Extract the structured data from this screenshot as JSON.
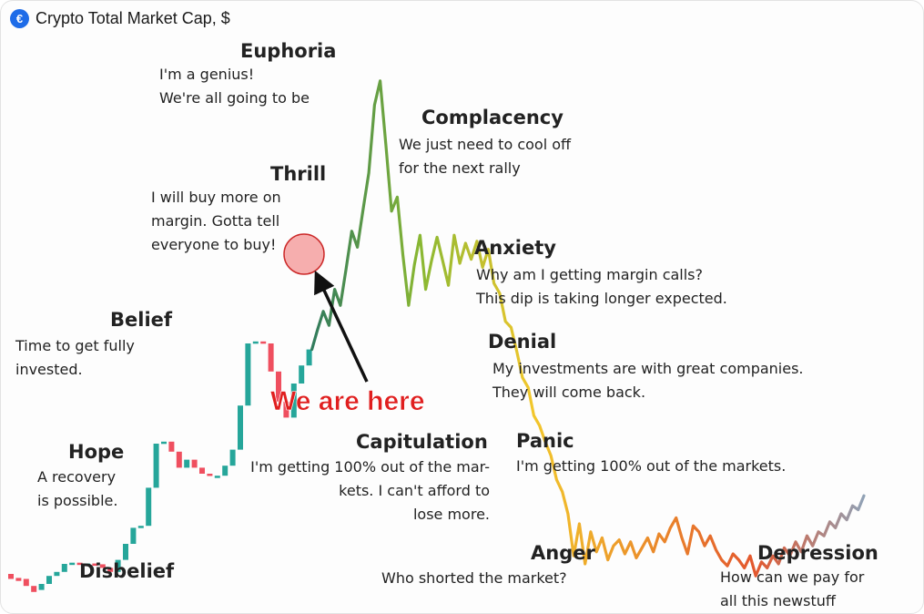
{
  "title": {
    "text": "Crypto Total Market Cap, $",
    "logo_icon": "coin-logo-icon"
  },
  "chart_data": {
    "type": "line",
    "title": "Crypto Total Market Cap, $",
    "xlabel": "",
    "ylabel": "",
    "grid": false,
    "candle_colors": {
      "up": "#26a69a",
      "down": "#ef4f5f"
    },
    "line_gradient": [
      "#2f7a5d",
      "#8ab832",
      "#f2c72c",
      "#eb8f2a",
      "#e3572e",
      "#8fa3b8"
    ],
    "candles": [
      {
        "o": 5,
        "c": 2.5
      },
      {
        "o": 3,
        "c": 1.5
      },
      {
        "o": 2.5,
        "c": -1
      },
      {
        "o": -1,
        "c": -4
      },
      {
        "o": -3,
        "c": 0
      },
      {
        "o": 0,
        "c": 4
      },
      {
        "o": 4,
        "c": 6
      },
      {
        "o": 6,
        "c": 10
      },
      {
        "o": 10,
        "c": 10.6
      },
      {
        "o": 10.6,
        "c": 9.8
      },
      {
        "o": 9.8,
        "c": 10.2
      },
      {
        "o": 10.2,
        "c": 9.8
      },
      {
        "o": 9.8,
        "c": 8
      },
      {
        "o": 8,
        "c": 6
      },
      {
        "o": 6,
        "c": 12
      },
      {
        "o": 12,
        "c": 20
      },
      {
        "o": 20,
        "c": 28
      },
      {
        "o": 28,
        "c": 29
      },
      {
        "o": 29,
        "c": 48
      },
      {
        "o": 48,
        "c": 70
      },
      {
        "o": 70,
        "c": 71
      },
      {
        "o": 71,
        "c": 66
      },
      {
        "o": 66,
        "c": 58
      },
      {
        "o": 58,
        "c": 62
      },
      {
        "o": 62,
        "c": 58
      },
      {
        "o": 58,
        "c": 55
      },
      {
        "o": 55,
        "c": 54
      },
      {
        "o": 54,
        "c": 54
      },
      {
        "o": 54,
        "c": 59
      },
      {
        "o": 59,
        "c": 67
      },
      {
        "o": 67,
        "c": 89
      },
      {
        "o": 89,
        "c": 120
      },
      {
        "o": 120,
        "c": 121
      },
      {
        "o": 121,
        "c": 120
      },
      {
        "o": 120,
        "c": 106
      },
      {
        "o": 106,
        "c": 91
      },
      {
        "o": 91,
        "c": 83
      },
      {
        "o": 83,
        "c": 100
      },
      {
        "o": 100,
        "c": 109
      },
      {
        "o": 109,
        "c": 117
      }
    ],
    "line": [
      117,
      127,
      136,
      129,
      147,
      139,
      157,
      176,
      168,
      187,
      205,
      239,
      251,
      219,
      186,
      193,
      164,
      139,
      159,
      174,
      147,
      161,
      173,
      161,
      149,
      174,
      160,
      170,
      162,
      171,
      158,
      167,
      150,
      145,
      131,
      128,
      116,
      103,
      98,
      84,
      79,
      71,
      64,
      52,
      46,
      35,
      14,
      30,
      10,
      26,
      16,
      23,
      12,
      19,
      22,
      15,
      21,
      13,
      18,
      23,
      16,
      25,
      21,
      28,
      33,
      23,
      15,
      29,
      26,
      19,
      24,
      17,
      12,
      9,
      15,
      12,
      8,
      14,
      4,
      11,
      8,
      14,
      10,
      18,
      14,
      21,
      16,
      24,
      19,
      26,
      24,
      31,
      28,
      35,
      32,
      39,
      37,
      44
    ],
    "phases": [
      {
        "name": "Euphoria",
        "note": [
          "I'm a genius!",
          "We're all going to be"
        ]
      },
      {
        "name": "Complacency",
        "note": [
          "We just need to cool off",
          "for the next rally"
        ]
      },
      {
        "name": "Thrill",
        "note": [
          "I will buy more on",
          "margin. Gotta tell",
          "everyone to buy!"
        ]
      },
      {
        "name": "Anxiety",
        "note": [
          "Why am I getting margin calls?",
          "This dip is taking longer expected."
        ]
      },
      {
        "name": "Belief",
        "note": [
          "Time to get fully",
          "invested."
        ]
      },
      {
        "name": "Denial",
        "note": [
          "My investments are with great companies.",
          "They will come back."
        ]
      },
      {
        "name": "Hope",
        "note": [
          "A recovery",
          "is possible."
        ]
      },
      {
        "name": "Capitulation",
        "note": [
          "I'm getting 100% out of the mar-",
          "kets. I can't afford to",
          "lose more."
        ]
      },
      {
        "name": "Panic",
        "note": [
          "I'm getting 100% out of the markets."
        ]
      },
      {
        "name": "Disbelief",
        "note": []
      },
      {
        "name": "Anger",
        "note": [
          "Who shorted the market?"
        ]
      },
      {
        "name": "Depression",
        "note": [
          "How can we pay for",
          "all this newstuff"
        ]
      }
    ],
    "marker": {
      "label": "We are here"
    }
  }
}
